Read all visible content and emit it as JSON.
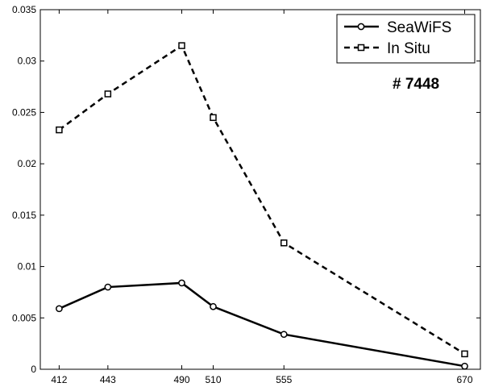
{
  "chart_data": {
    "type": "line",
    "title": "",
    "xlabel": "",
    "ylabel": "",
    "x": [
      412,
      443,
      490,
      510,
      555,
      670
    ],
    "xlim": [
      400,
      680
    ],
    "ylim": [
      0,
      0.035
    ],
    "xticks": [
      412,
      443,
      490,
      510,
      555,
      670
    ],
    "yticks": [
      0,
      0.005,
      0.01,
      0.015,
      0.02,
      0.025,
      0.03,
      0.035
    ],
    "ytick_labels": [
      "0",
      "0.005",
      "0.01",
      "0.015",
      "0.02",
      "0.025",
      "0.03",
      "0.035"
    ],
    "grid": false,
    "legend": "top-right",
    "annotation": "# 7448",
    "series": [
      {
        "name": "SeaWiFS",
        "values": [
          0.0059,
          0.008,
          0.0084,
          0.0061,
          0.0034,
          0.0003
        ],
        "style": "solid",
        "marker": "circle",
        "color": "#000000"
      },
      {
        "name": "In Situ",
        "values": [
          0.0233,
          0.0268,
          0.0315,
          0.0245,
          0.0123,
          0.0015
        ],
        "style": "dashed",
        "marker": "square",
        "color": "#000000"
      }
    ]
  }
}
